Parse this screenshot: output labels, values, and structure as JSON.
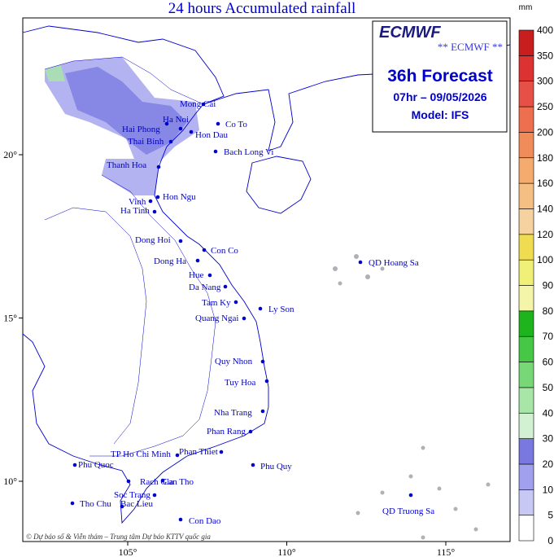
{
  "title": "24 hours Accumulated rainfall",
  "forecast_box": {
    "logo": "ECMWF",
    "subtitle": "** ECMWF **",
    "heading": "36h Forecast",
    "valid_time": "07hr – 09/05/2026",
    "model": "Model: IFS"
  },
  "axes": {
    "xticks": [
      {
        "value": 105,
        "label": "105°"
      },
      {
        "value": 110,
        "label": "110°"
      },
      {
        "value": 115,
        "label": "115°"
      }
    ],
    "yticks": [
      {
        "value": 20,
        "label": "20°"
      },
      {
        "value": 15,
        "label": "15°"
      },
      {
        "value": 10,
        "label": "10°"
      }
    ]
  },
  "colorbar": {
    "unit": "mm",
    "levels": [
      0,
      5,
      10,
      20,
      30,
      40,
      50,
      60,
      70,
      80,
      90,
      100,
      120,
      140,
      160,
      180,
      200,
      250,
      300,
      350,
      400
    ],
    "colors": [
      "#ffffff",
      "#c8c8f5",
      "#a0a0ee",
      "#7878e0",
      "#d2f0d2",
      "#a8e6a8",
      "#78d878",
      "#46c846",
      "#1eb41e",
      "#f5f5aa",
      "#f0f078",
      "#f0dc50",
      "#f5d2a0",
      "#f5be82",
      "#f5aa6e",
      "#f08c5a",
      "#ee6e50",
      "#e65046",
      "#dc3232",
      "#c81e1e"
    ]
  },
  "stations": [
    {
      "name": "Mong Cai"
    },
    {
      "name": "Ha Noi"
    },
    {
      "name": "Hai Phong"
    },
    {
      "name": "Hon Dau"
    },
    {
      "name": "Co To"
    },
    {
      "name": "Thai Binh"
    },
    {
      "name": "Bach Long Vi"
    },
    {
      "name": "Thanh Hoa"
    },
    {
      "name": "Hon Ngu"
    },
    {
      "name": "Vinh"
    },
    {
      "name": "Ha Tinh"
    },
    {
      "name": "Dong Hoi"
    },
    {
      "name": "Con Co"
    },
    {
      "name": "Dong Ha"
    },
    {
      "name": "Hue"
    },
    {
      "name": "Da Nang"
    },
    {
      "name": "Tam Ky"
    },
    {
      "name": "Ly Son"
    },
    {
      "name": "Quang Ngai"
    },
    {
      "name": "Quy Nhon"
    },
    {
      "name": "Tuy Hoa"
    },
    {
      "name": "Nha Trang"
    },
    {
      "name": "Phan Rang"
    },
    {
      "name": "Phan Thiet"
    },
    {
      "name": "TP Ho Chi Minh"
    },
    {
      "name": "Phu Quy"
    },
    {
      "name": "Phu Quoc"
    },
    {
      "name": "Rach Gia"
    },
    {
      "name": "Can Tho"
    },
    {
      "name": "Soc Trang"
    },
    {
      "name": "Tho Chu"
    },
    {
      "name": "Bac Lieu"
    },
    {
      "name": "Con Dao"
    },
    {
      "name": "QD Hoang Sa"
    },
    {
      "name": "QD Truong Sa"
    }
  ],
  "credit": "© Dự báo số & Viễn thám – Trung tâm Dự báo KTTV quốc gia"
}
